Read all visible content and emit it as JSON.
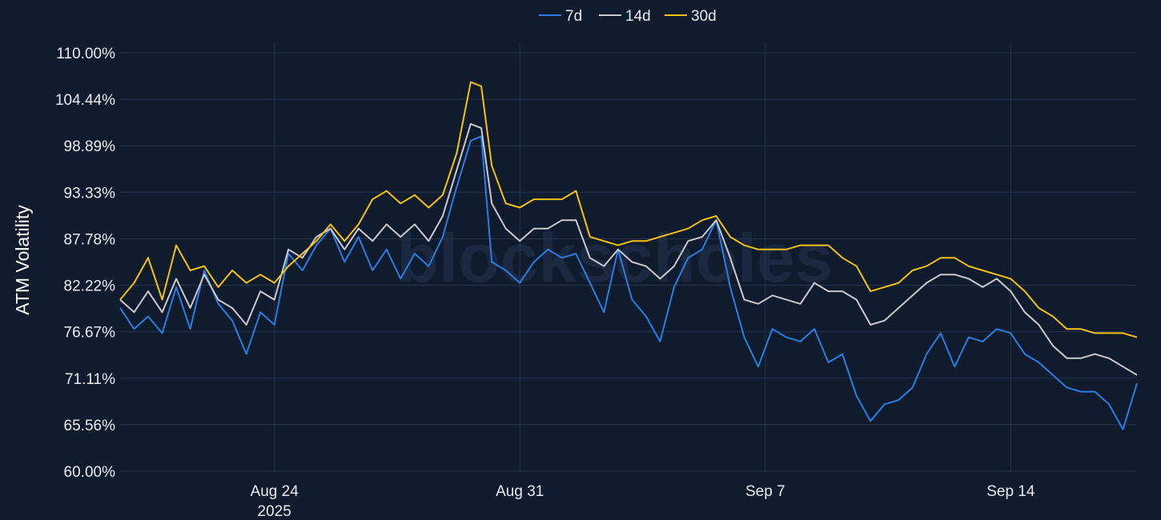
{
  "chart_data": {
    "type": "line",
    "ylabel": "ATM Volatility",
    "watermark": "blockscholes",
    "y_ticks": [
      "110.00%",
      "104.44%",
      "98.89%",
      "93.33%",
      "87.78%",
      "82.22%",
      "76.67%",
      "71.11%",
      "65.56%",
      "60.00%"
    ],
    "ylim": [
      60.0,
      110.0
    ],
    "x_ticks": [
      {
        "label": "Aug 24",
        "sublabel": "2025",
        "day": 24
      },
      {
        "label": "Aug 31",
        "sublabel": "",
        "day": 31
      },
      {
        "label": "Sep 7",
        "sublabel": "",
        "day": 38
      },
      {
        "label": "Sep 14",
        "sublabel": "",
        "day": 45
      }
    ],
    "xlim_days": [
      19.6,
      48.6
    ],
    "grid": true,
    "legend_position": "top-center",
    "series": [
      {
        "name": "7d",
        "color": "#2a7de1",
        "points": [
          [
            19.6,
            79.5
          ],
          [
            20.0,
            77.0
          ],
          [
            20.4,
            78.5
          ],
          [
            20.8,
            76.5
          ],
          [
            21.2,
            82.0
          ],
          [
            21.6,
            77.0
          ],
          [
            22.0,
            84.0
          ],
          [
            22.4,
            80.0
          ],
          [
            22.8,
            78.0
          ],
          [
            23.2,
            74.0
          ],
          [
            23.6,
            79.0
          ],
          [
            24.0,
            77.5
          ],
          [
            24.4,
            86.0
          ],
          [
            24.8,
            84.0
          ],
          [
            25.2,
            87.0
          ],
          [
            25.6,
            89.0
          ],
          [
            26.0,
            85.0
          ],
          [
            26.4,
            88.0
          ],
          [
            26.8,
            84.0
          ],
          [
            27.2,
            86.5
          ],
          [
            27.6,
            83.0
          ],
          [
            28.0,
            86.0
          ],
          [
            28.4,
            84.5
          ],
          [
            28.8,
            88.0
          ],
          [
            29.2,
            94.0
          ],
          [
            29.6,
            99.5
          ],
          [
            29.9,
            100.0
          ],
          [
            30.2,
            85.0
          ],
          [
            30.6,
            84.0
          ],
          [
            31.0,
            82.5
          ],
          [
            31.4,
            85.0
          ],
          [
            31.8,
            86.5
          ],
          [
            32.2,
            85.5
          ],
          [
            32.6,
            86.0
          ],
          [
            33.0,
            82.5
          ],
          [
            33.4,
            79.0
          ],
          [
            33.8,
            86.5
          ],
          [
            34.2,
            80.5
          ],
          [
            34.6,
            78.5
          ],
          [
            35.0,
            75.5
          ],
          [
            35.4,
            82.0
          ],
          [
            35.8,
            85.5
          ],
          [
            36.2,
            86.5
          ],
          [
            36.6,
            90.0
          ],
          [
            37.0,
            82.0
          ],
          [
            37.4,
            76.0
          ],
          [
            37.8,
            72.5
          ],
          [
            38.2,
            77.0
          ],
          [
            38.6,
            76.0
          ],
          [
            39.0,
            75.5
          ],
          [
            39.4,
            77.0
          ],
          [
            39.8,
            73.0
          ],
          [
            40.2,
            74.0
          ],
          [
            40.6,
            69.0
          ],
          [
            41.0,
            66.0
          ],
          [
            41.4,
            68.0
          ],
          [
            41.8,
            68.5
          ],
          [
            42.2,
            70.0
          ],
          [
            42.6,
            74.0
          ],
          [
            43.0,
            76.5
          ],
          [
            43.4,
            72.5
          ],
          [
            43.8,
            76.0
          ],
          [
            44.2,
            75.5
          ],
          [
            44.6,
            77.0
          ],
          [
            45.0,
            76.5
          ],
          [
            45.4,
            74.0
          ],
          [
            45.8,
            73.0
          ],
          [
            46.2,
            71.5
          ],
          [
            46.6,
            70.0
          ],
          [
            47.0,
            69.5
          ],
          [
            47.4,
            69.5
          ],
          [
            47.8,
            68.0
          ],
          [
            48.2,
            65.0
          ],
          [
            48.6,
            70.5
          ]
        ]
      },
      {
        "name": "14d",
        "color": "#c8cacf",
        "points": [
          [
            19.6,
            80.5
          ],
          [
            20.0,
            79.0
          ],
          [
            20.4,
            81.5
          ],
          [
            20.8,
            79.0
          ],
          [
            21.2,
            83.0
          ],
          [
            21.6,
            79.5
          ],
          [
            22.0,
            83.5
          ],
          [
            22.4,
            80.5
          ],
          [
            22.8,
            79.5
          ],
          [
            23.2,
            77.5
          ],
          [
            23.6,
            81.5
          ],
          [
            24.0,
            80.5
          ],
          [
            24.4,
            86.5
          ],
          [
            24.8,
            85.5
          ],
          [
            25.2,
            88.0
          ],
          [
            25.6,
            89.0
          ],
          [
            26.0,
            86.5
          ],
          [
            26.4,
            89.0
          ],
          [
            26.8,
            87.5
          ],
          [
            27.2,
            89.5
          ],
          [
            27.6,
            88.0
          ],
          [
            28.0,
            89.5
          ],
          [
            28.4,
            87.5
          ],
          [
            28.8,
            90.5
          ],
          [
            29.2,
            96.0
          ],
          [
            29.6,
            101.5
          ],
          [
            29.9,
            101.0
          ],
          [
            30.2,
            92.0
          ],
          [
            30.6,
            89.0
          ],
          [
            31.0,
            87.5
          ],
          [
            31.4,
            89.0
          ],
          [
            31.8,
            89.0
          ],
          [
            32.2,
            90.0
          ],
          [
            32.6,
            90.0
          ],
          [
            33.0,
            85.5
          ],
          [
            33.4,
            84.5
          ],
          [
            33.8,
            86.5
          ],
          [
            34.2,
            85.0
          ],
          [
            34.6,
            84.5
          ],
          [
            35.0,
            83.0
          ],
          [
            35.4,
            84.5
          ],
          [
            35.8,
            87.5
          ],
          [
            36.2,
            88.0
          ],
          [
            36.6,
            90.0
          ],
          [
            37.0,
            85.5
          ],
          [
            37.4,
            80.5
          ],
          [
            37.8,
            80.0
          ],
          [
            38.2,
            81.0
          ],
          [
            38.6,
            80.5
          ],
          [
            39.0,
            80.0
          ],
          [
            39.4,
            82.5
          ],
          [
            39.8,
            81.5
          ],
          [
            40.2,
            81.5
          ],
          [
            40.6,
            80.5
          ],
          [
            41.0,
            77.5
          ],
          [
            41.4,
            78.0
          ],
          [
            41.8,
            79.5
          ],
          [
            42.2,
            81.0
          ],
          [
            42.6,
            82.5
          ],
          [
            43.0,
            83.5
          ],
          [
            43.4,
            83.5
          ],
          [
            43.8,
            83.0
          ],
          [
            44.2,
            82.0
          ],
          [
            44.6,
            83.0
          ],
          [
            45.0,
            81.5
          ],
          [
            45.4,
            79.0
          ],
          [
            45.8,
            77.5
          ],
          [
            46.2,
            75.0
          ],
          [
            46.6,
            73.5
          ],
          [
            47.0,
            73.5
          ],
          [
            47.4,
            74.0
          ],
          [
            47.8,
            73.5
          ],
          [
            48.2,
            72.5
          ],
          [
            48.6,
            71.5
          ]
        ]
      },
      {
        "name": "30d",
        "color": "#f2c313",
        "points": [
          [
            19.6,
            80.5
          ],
          [
            20.0,
            82.5
          ],
          [
            20.4,
            85.5
          ],
          [
            20.8,
            80.5
          ],
          [
            21.2,
            87.0
          ],
          [
            21.6,
            84.0
          ],
          [
            22.0,
            84.5
          ],
          [
            22.4,
            82.0
          ],
          [
            22.8,
            84.0
          ],
          [
            23.2,
            82.5
          ],
          [
            23.6,
            83.5
          ],
          [
            24.0,
            82.5
          ],
          [
            24.4,
            84.5
          ],
          [
            24.8,
            86.0
          ],
          [
            25.2,
            87.5
          ],
          [
            25.6,
            89.5
          ],
          [
            26.0,
            87.5
          ],
          [
            26.4,
            89.5
          ],
          [
            26.8,
            92.5
          ],
          [
            27.2,
            93.5
          ],
          [
            27.6,
            92.0
          ],
          [
            28.0,
            93.0
          ],
          [
            28.4,
            91.5
          ],
          [
            28.8,
            93.0
          ],
          [
            29.2,
            98.0
          ],
          [
            29.6,
            106.5
          ],
          [
            29.9,
            106.0
          ],
          [
            30.2,
            96.5
          ],
          [
            30.6,
            92.0
          ],
          [
            31.0,
            91.5
          ],
          [
            31.4,
            92.5
          ],
          [
            31.8,
            92.5
          ],
          [
            32.2,
            92.5
          ],
          [
            32.6,
            93.5
          ],
          [
            33.0,
            88.0
          ],
          [
            33.4,
            87.5
          ],
          [
            33.8,
            87.0
          ],
          [
            34.2,
            87.5
          ],
          [
            34.6,
            87.5
          ],
          [
            35.0,
            88.0
          ],
          [
            35.4,
            88.5
          ],
          [
            35.8,
            89.0
          ],
          [
            36.2,
            90.0
          ],
          [
            36.6,
            90.5
          ],
          [
            37.0,
            88.0
          ],
          [
            37.4,
            87.0
          ],
          [
            37.8,
            86.5
          ],
          [
            38.2,
            86.5
          ],
          [
            38.6,
            86.5
          ],
          [
            39.0,
            87.0
          ],
          [
            39.4,
            87.0
          ],
          [
            39.8,
            87.0
          ],
          [
            40.2,
            85.5
          ],
          [
            40.6,
            84.5
          ],
          [
            41.0,
            81.5
          ],
          [
            41.4,
            82.0
          ],
          [
            41.8,
            82.5
          ],
          [
            42.2,
            84.0
          ],
          [
            42.6,
            84.5
          ],
          [
            43.0,
            85.5
          ],
          [
            43.4,
            85.5
          ],
          [
            43.8,
            84.5
          ],
          [
            44.2,
            84.0
          ],
          [
            44.6,
            83.5
          ],
          [
            45.0,
            83.0
          ],
          [
            45.4,
            81.5
          ],
          [
            45.8,
            79.5
          ],
          [
            46.2,
            78.5
          ],
          [
            46.6,
            77.0
          ],
          [
            47.0,
            77.0
          ],
          [
            47.4,
            76.5
          ],
          [
            47.8,
            76.5
          ],
          [
            48.2,
            76.5
          ],
          [
            48.6,
            76.0
          ]
        ]
      }
    ]
  }
}
